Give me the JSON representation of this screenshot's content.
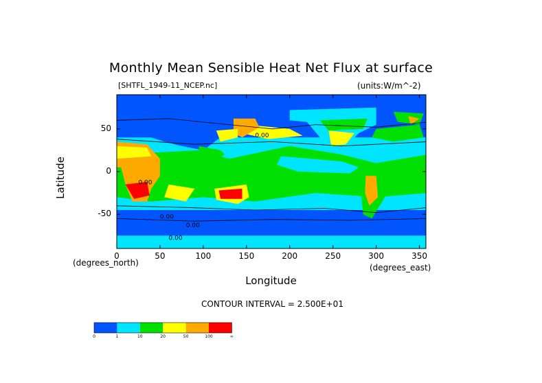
{
  "chart_data": {
    "type": "heatmap",
    "title": "Monthly Mean Sensible Heat Net Flux at surface",
    "subtitle_left": "[SHTFL_1949-11_NCEP.nc]",
    "subtitle_right": "(units:W/m^-2)",
    "xlabel": "Longitude",
    "xlabel_unit": "(degrees_east)",
    "ylabel": "Latitude",
    "ylabel_unit": "(degrees_north)",
    "x_ticks": [
      "0",
      "50",
      "100",
      "150",
      "200",
      "250",
      "300",
      "350"
    ],
    "y_ticks": [
      "50",
      "0",
      "-50"
    ],
    "xlim": [
      0,
      357.5
    ],
    "ylim": [
      -90,
      90
    ],
    "contour_interval": "CONTOUR INTERVAL = 2.500E+01",
    "colorbar": {
      "levels": [
        "0",
        "1",
        "10",
        "20",
        "50",
        "100",
        "∞"
      ],
      "colors": [
        "#0055ff",
        "#00e5ff",
        "#00e000",
        "#ffff00",
        "#ffaa00",
        "#ff0000"
      ]
    },
    "contour_labels": [
      "0.00",
      "0.00",
      "0.00",
      "0.00",
      "0.00"
    ],
    "background_color": "#1a4cd6"
  }
}
